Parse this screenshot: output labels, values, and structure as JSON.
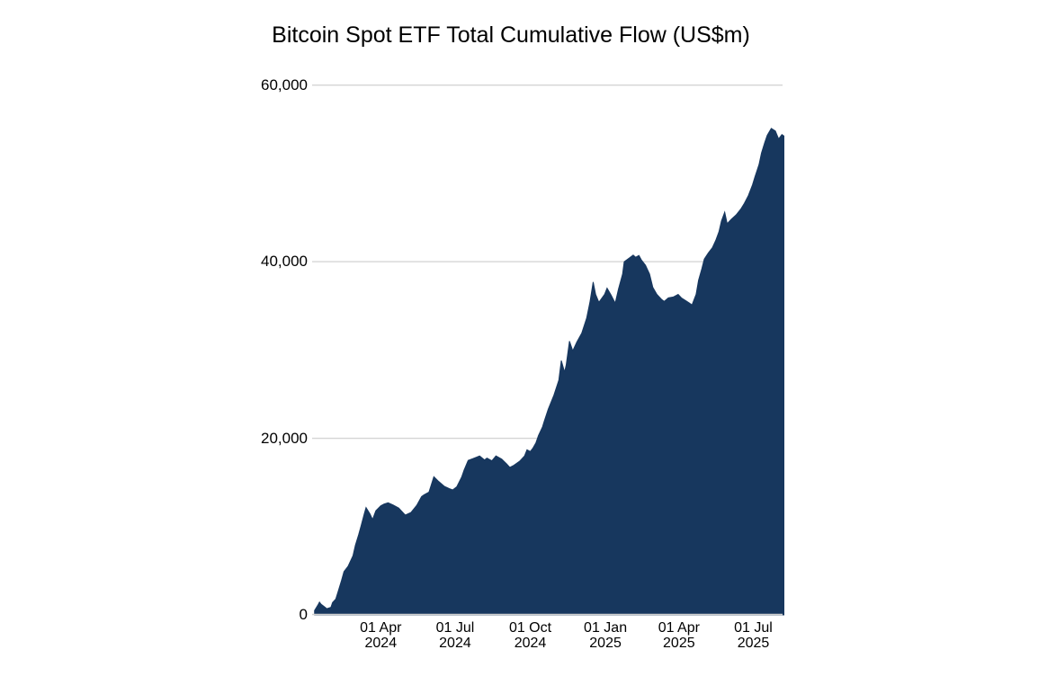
{
  "page": {
    "background": "#ffffff"
  },
  "chart_data": {
    "type": "area",
    "title": "Bitcoin Spot ETF Total Cumulative Flow (US$m)",
    "xlabel": "",
    "ylabel": "",
    "grid": "horizontal-only",
    "legend": "none",
    "text_color": "#000000",
    "grid_color": "#d5d5d5",
    "axis_line_color": "#cfcfcf",
    "plot_background": "#ffffff",
    "xlim": [
      "2024-01-08",
      "2025-08-08"
    ],
    "ylim": [
      0,
      62000
    ],
    "y_ticks": [
      {
        "value": 0,
        "label": "0"
      },
      {
        "value": 20000,
        "label": "20,000"
      },
      {
        "value": 40000,
        "label": "40,000"
      },
      {
        "value": 60000,
        "label": "60,000"
      }
    ],
    "x_ticks": [
      {
        "date": "2024-04-01",
        "line1": "01 Apr",
        "line2": "2024"
      },
      {
        "date": "2024-07-01",
        "line1": "01 Jul",
        "line2": "2024"
      },
      {
        "date": "2024-10-01",
        "line1": "01 Oct",
        "line2": "2024"
      },
      {
        "date": "2025-01-01",
        "line1": "01 Jan",
        "line2": "2025"
      },
      {
        "date": "2025-04-01",
        "line1": "01 Apr",
        "line2": "2025"
      },
      {
        "date": "2025-07-01",
        "line1": "01 Jul",
        "line2": "2025"
      }
    ],
    "series": [
      {
        "name": "Total Cumulative Flow (US$m)",
        "color": "#17375e",
        "points": [
          [
            "2024-01-11",
            500
          ],
          [
            "2024-01-15",
            1100
          ],
          [
            "2024-01-17",
            1450
          ],
          [
            "2024-01-19",
            1200
          ],
          [
            "2024-01-24",
            850
          ],
          [
            "2024-01-26",
            700
          ],
          [
            "2024-01-31",
            850
          ],
          [
            "2024-02-02",
            1400
          ],
          [
            "2024-02-06",
            1800
          ],
          [
            "2024-02-09",
            2700
          ],
          [
            "2024-02-13",
            3900
          ],
          [
            "2024-02-16",
            4900
          ],
          [
            "2024-02-21",
            5500
          ],
          [
            "2024-02-27",
            6700
          ],
          [
            "2024-03-01",
            7900
          ],
          [
            "2024-03-05",
            9100
          ],
          [
            "2024-03-08",
            10100
          ],
          [
            "2024-03-12",
            11500
          ],
          [
            "2024-03-14",
            12150
          ],
          [
            "2024-03-19",
            11400
          ],
          [
            "2024-03-22",
            10800
          ],
          [
            "2024-03-26",
            11800
          ],
          [
            "2024-04-01",
            12350
          ],
          [
            "2024-04-05",
            12550
          ],
          [
            "2024-04-10",
            12700
          ],
          [
            "2024-04-16",
            12450
          ],
          [
            "2024-04-23",
            12100
          ],
          [
            "2024-04-26",
            11800
          ],
          [
            "2024-05-01",
            11300
          ],
          [
            "2024-05-08",
            11600
          ],
          [
            "2024-05-15",
            12400
          ],
          [
            "2024-05-21",
            13400
          ],
          [
            "2024-05-24",
            13600
          ],
          [
            "2024-05-30",
            13900
          ],
          [
            "2024-06-05",
            15650
          ],
          [
            "2024-06-11",
            15100
          ],
          [
            "2024-06-18",
            14550
          ],
          [
            "2024-06-24",
            14300
          ],
          [
            "2024-06-28",
            14150
          ],
          [
            "2024-07-03",
            14500
          ],
          [
            "2024-07-09",
            15600
          ],
          [
            "2024-07-12",
            16400
          ],
          [
            "2024-07-17",
            17500
          ],
          [
            "2024-07-23",
            17700
          ],
          [
            "2024-07-31",
            18000
          ],
          [
            "2024-08-06",
            17550
          ],
          [
            "2024-08-09",
            17750
          ],
          [
            "2024-08-15",
            17450
          ],
          [
            "2024-08-20",
            18000
          ],
          [
            "2024-08-27",
            17650
          ],
          [
            "2024-09-02",
            17100
          ],
          [
            "2024-09-06",
            16700
          ],
          [
            "2024-09-11",
            16950
          ],
          [
            "2024-09-18",
            17400
          ],
          [
            "2024-09-24",
            18000
          ],
          [
            "2024-09-27",
            18700
          ],
          [
            "2024-10-01",
            18500
          ],
          [
            "2024-10-04",
            18850
          ],
          [
            "2024-10-08",
            19500
          ],
          [
            "2024-10-11",
            20300
          ],
          [
            "2024-10-16",
            21300
          ],
          [
            "2024-10-18",
            21900
          ],
          [
            "2024-10-23",
            23300
          ],
          [
            "2024-10-30",
            24900
          ],
          [
            "2024-11-05",
            26600
          ],
          [
            "2024-11-08",
            28800
          ],
          [
            "2024-11-12",
            27500
          ],
          [
            "2024-11-14",
            28300
          ],
          [
            "2024-11-18",
            31000
          ],
          [
            "2024-11-22",
            29900
          ],
          [
            "2024-11-27",
            30900
          ],
          [
            "2024-12-03",
            31900
          ],
          [
            "2024-12-09",
            33600
          ],
          [
            "2024-12-13",
            35400
          ],
          [
            "2024-12-17",
            37700
          ],
          [
            "2024-12-20",
            36300
          ],
          [
            "2024-12-24",
            35400
          ],
          [
            "2024-12-31",
            36300
          ],
          [
            "2025-01-03",
            37000
          ],
          [
            "2025-01-08",
            36200
          ],
          [
            "2025-01-13",
            35300
          ],
          [
            "2025-01-17",
            36900
          ],
          [
            "2025-01-22",
            38600
          ],
          [
            "2025-01-24",
            40000
          ],
          [
            "2025-01-30",
            40400
          ],
          [
            "2025-02-04",
            40750
          ],
          [
            "2025-02-07",
            40500
          ],
          [
            "2025-02-11",
            40700
          ],
          [
            "2025-02-14",
            40200
          ],
          [
            "2025-02-19",
            39600
          ],
          [
            "2025-02-24",
            38600
          ],
          [
            "2025-02-28",
            37100
          ],
          [
            "2025-03-05",
            36300
          ],
          [
            "2025-03-11",
            35700
          ],
          [
            "2025-03-14",
            35500
          ],
          [
            "2025-03-19",
            35900
          ],
          [
            "2025-03-25",
            36000
          ],
          [
            "2025-03-31",
            36300
          ],
          [
            "2025-04-04",
            35900
          ],
          [
            "2025-04-09",
            35600
          ],
          [
            "2025-04-14",
            35300
          ],
          [
            "2025-04-17",
            35100
          ],
          [
            "2025-04-22",
            36300
          ],
          [
            "2025-04-25",
            37900
          ],
          [
            "2025-04-29",
            39200
          ],
          [
            "2025-05-02",
            40300
          ],
          [
            "2025-05-07",
            41000
          ],
          [
            "2025-05-12",
            41600
          ],
          [
            "2025-05-16",
            42400
          ],
          [
            "2025-05-20",
            43400
          ],
          [
            "2025-05-23",
            44600
          ],
          [
            "2025-05-27",
            45600
          ],
          [
            "2025-05-30",
            44300
          ],
          [
            "2025-06-04",
            44800
          ],
          [
            "2025-06-10",
            45300
          ],
          [
            "2025-06-16",
            46000
          ],
          [
            "2025-06-20",
            46600
          ],
          [
            "2025-06-25",
            47500
          ],
          [
            "2025-06-30",
            48700
          ],
          [
            "2025-07-03",
            49600
          ],
          [
            "2025-07-08",
            51000
          ],
          [
            "2025-07-11",
            52300
          ],
          [
            "2025-07-15",
            53500
          ],
          [
            "2025-07-18",
            54300
          ],
          [
            "2025-07-23",
            55100
          ],
          [
            "2025-07-28",
            54800
          ],
          [
            "2025-08-01",
            53900
          ],
          [
            "2025-08-05",
            54400
          ],
          [
            "2025-08-08",
            54200
          ]
        ]
      }
    ]
  }
}
